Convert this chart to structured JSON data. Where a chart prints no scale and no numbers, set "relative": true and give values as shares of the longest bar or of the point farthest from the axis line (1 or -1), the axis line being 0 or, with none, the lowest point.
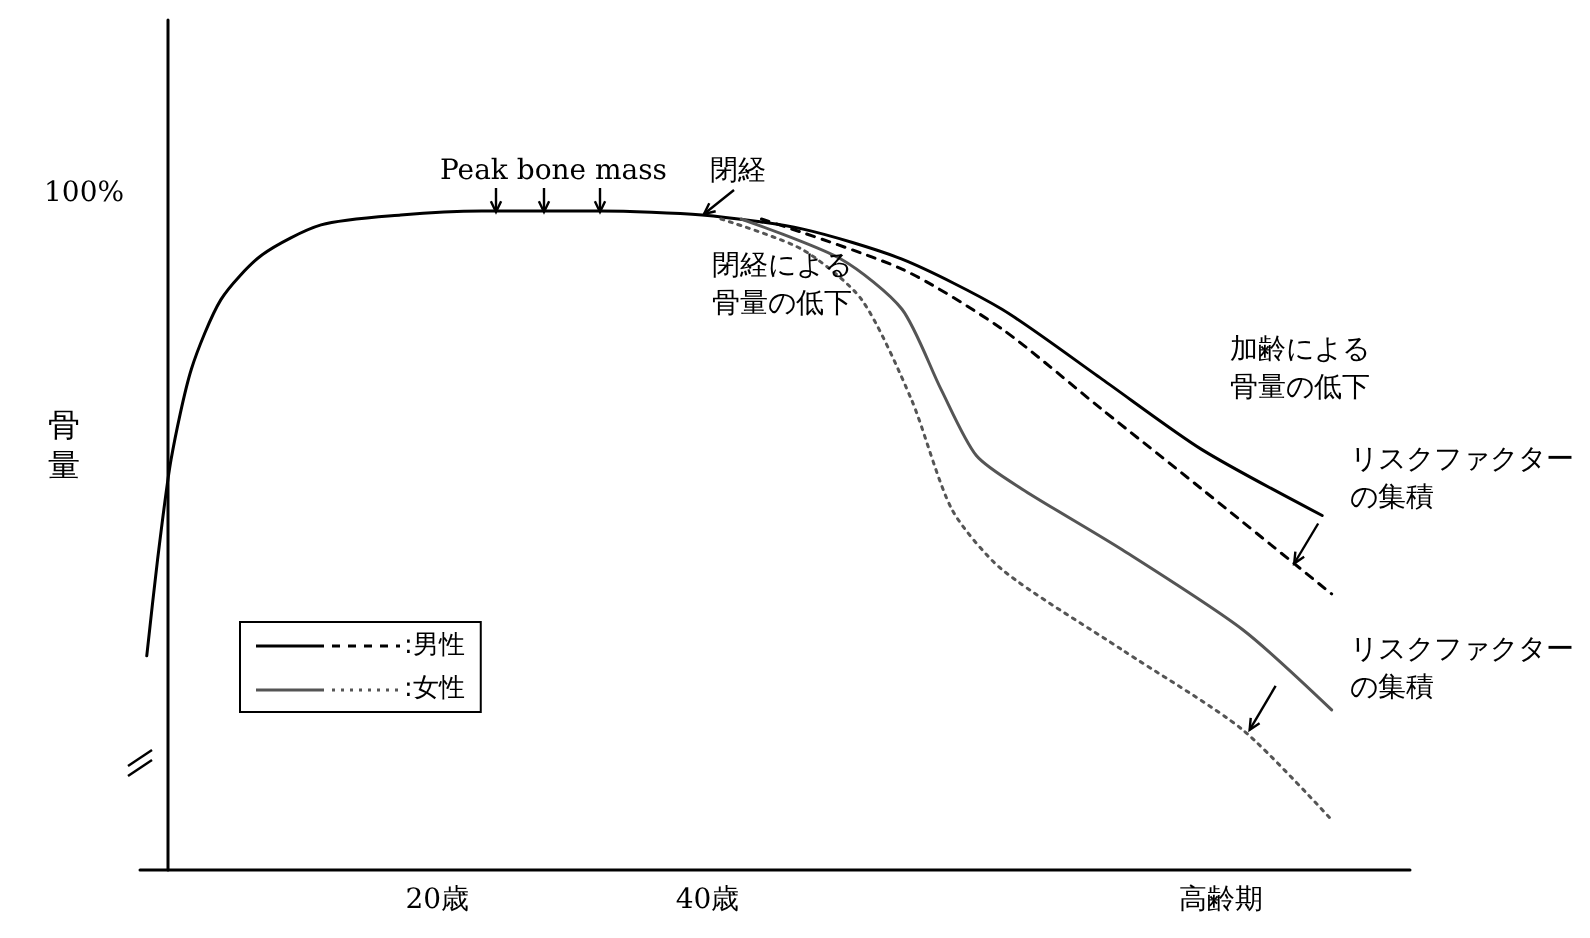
{
  "chart_data": {
    "type": "line",
    "relative": true,
    "ylabel": "骨量",
    "xlim": [
      -2,
      92
    ],
    "xticks": [
      {
        "value": 20,
        "label": "20歳"
      },
      {
        "value": 40,
        "label": "40歳"
      },
      {
        "value": 78,
        "label": "高齢期"
      }
    ],
    "legend": "bottom left",
    "series": [
      {
        "name": ":男性",
        "color": "#000000",
        "line_style": "solid",
        "x": [
          -1.5,
          -0.7,
          0.3,
          1.8,
          4,
          7,
          11.4,
          17.3,
          23.3,
          32.1,
          39.6,
          47,
          54.4,
          61.8,
          69.2,
          76.6,
          85.5
        ],
        "values": [
          0.325,
          0.471,
          0.623,
          0.76,
          0.866,
          0.933,
          0.979,
          0.994,
          1,
          1,
          0.994,
          0.973,
          0.927,
          0.851,
          0.745,
          0.638,
          0.538
        ]
      },
      {
        "color": "#000000",
        "line_style": "dashed",
        "x": [
          44,
          54.4,
          61.8,
          69.2,
          76.6,
          86.2
        ],
        "values": [
          0.988,
          0.912,
          0.821,
          0.699,
          0.578,
          0.419
        ]
      },
      {
        "name": ":女性",
        "color": "#555555",
        "line_style": "solid",
        "x": [
          42.5,
          49.9,
          54.4,
          57.3,
          59.9,
          63.3,
          70.7,
          79.6,
          86.2
        ],
        "values": [
          0.988,
          0.927,
          0.851,
          0.729,
          0.629,
          0.578,
          0.486,
          0.365,
          0.243
        ]
      },
      {
        "color": "#555555",
        "line_style": "dotted",
        "x": [
          41,
          47,
          51.4,
          55.1,
          58.1,
          61.8,
          70.7,
          79.6,
          86.2
        ],
        "values": [
          0.988,
          0.942,
          0.866,
          0.714,
          0.547,
          0.456,
          0.334,
          0.213,
          0.076
        ]
      }
    ],
    "annotations": [
      "100%",
      "Peak bone mass",
      "閉経",
      "閉経による骨量の低下",
      "加齢による骨量の低下",
      "リスクファクターの集積",
      "リスクファクターの集積"
    ]
  }
}
